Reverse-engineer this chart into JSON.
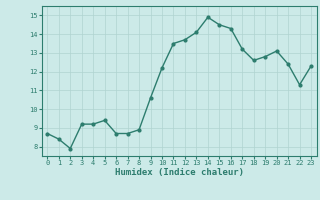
{
  "x": [
    0,
    1,
    2,
    3,
    4,
    5,
    6,
    7,
    8,
    9,
    10,
    11,
    12,
    13,
    14,
    15,
    16,
    17,
    18,
    19,
    20,
    21,
    22,
    23
  ],
  "y": [
    8.7,
    8.4,
    7.9,
    9.2,
    9.2,
    9.4,
    8.7,
    8.7,
    8.9,
    10.6,
    12.2,
    13.5,
    13.7,
    14.1,
    14.9,
    14.5,
    14.3,
    13.2,
    12.6,
    12.8,
    13.1,
    12.4,
    11.3,
    12.3
  ],
  "line_color": "#2d7d6e",
  "marker": "o",
  "marker_size": 2.0,
  "line_width": 1.0,
  "bg_color": "#cceae8",
  "grid_color": "#b0d4d0",
  "xlabel": "Humidex (Indice chaleur)",
  "xlim": [
    -0.5,
    23.5
  ],
  "ylim": [
    7.5,
    15.5
  ],
  "yticks": [
    8,
    9,
    10,
    11,
    12,
    13,
    14,
    15
  ],
  "xticks": [
    0,
    1,
    2,
    3,
    4,
    5,
    6,
    7,
    8,
    9,
    10,
    11,
    12,
    13,
    14,
    15,
    16,
    17,
    18,
    19,
    20,
    21,
    22,
    23
  ],
  "tick_color": "#2d7d6e",
  "label_color": "#2d7d6e",
  "tick_fontsize": 5.0,
  "xlabel_fontsize": 6.5
}
